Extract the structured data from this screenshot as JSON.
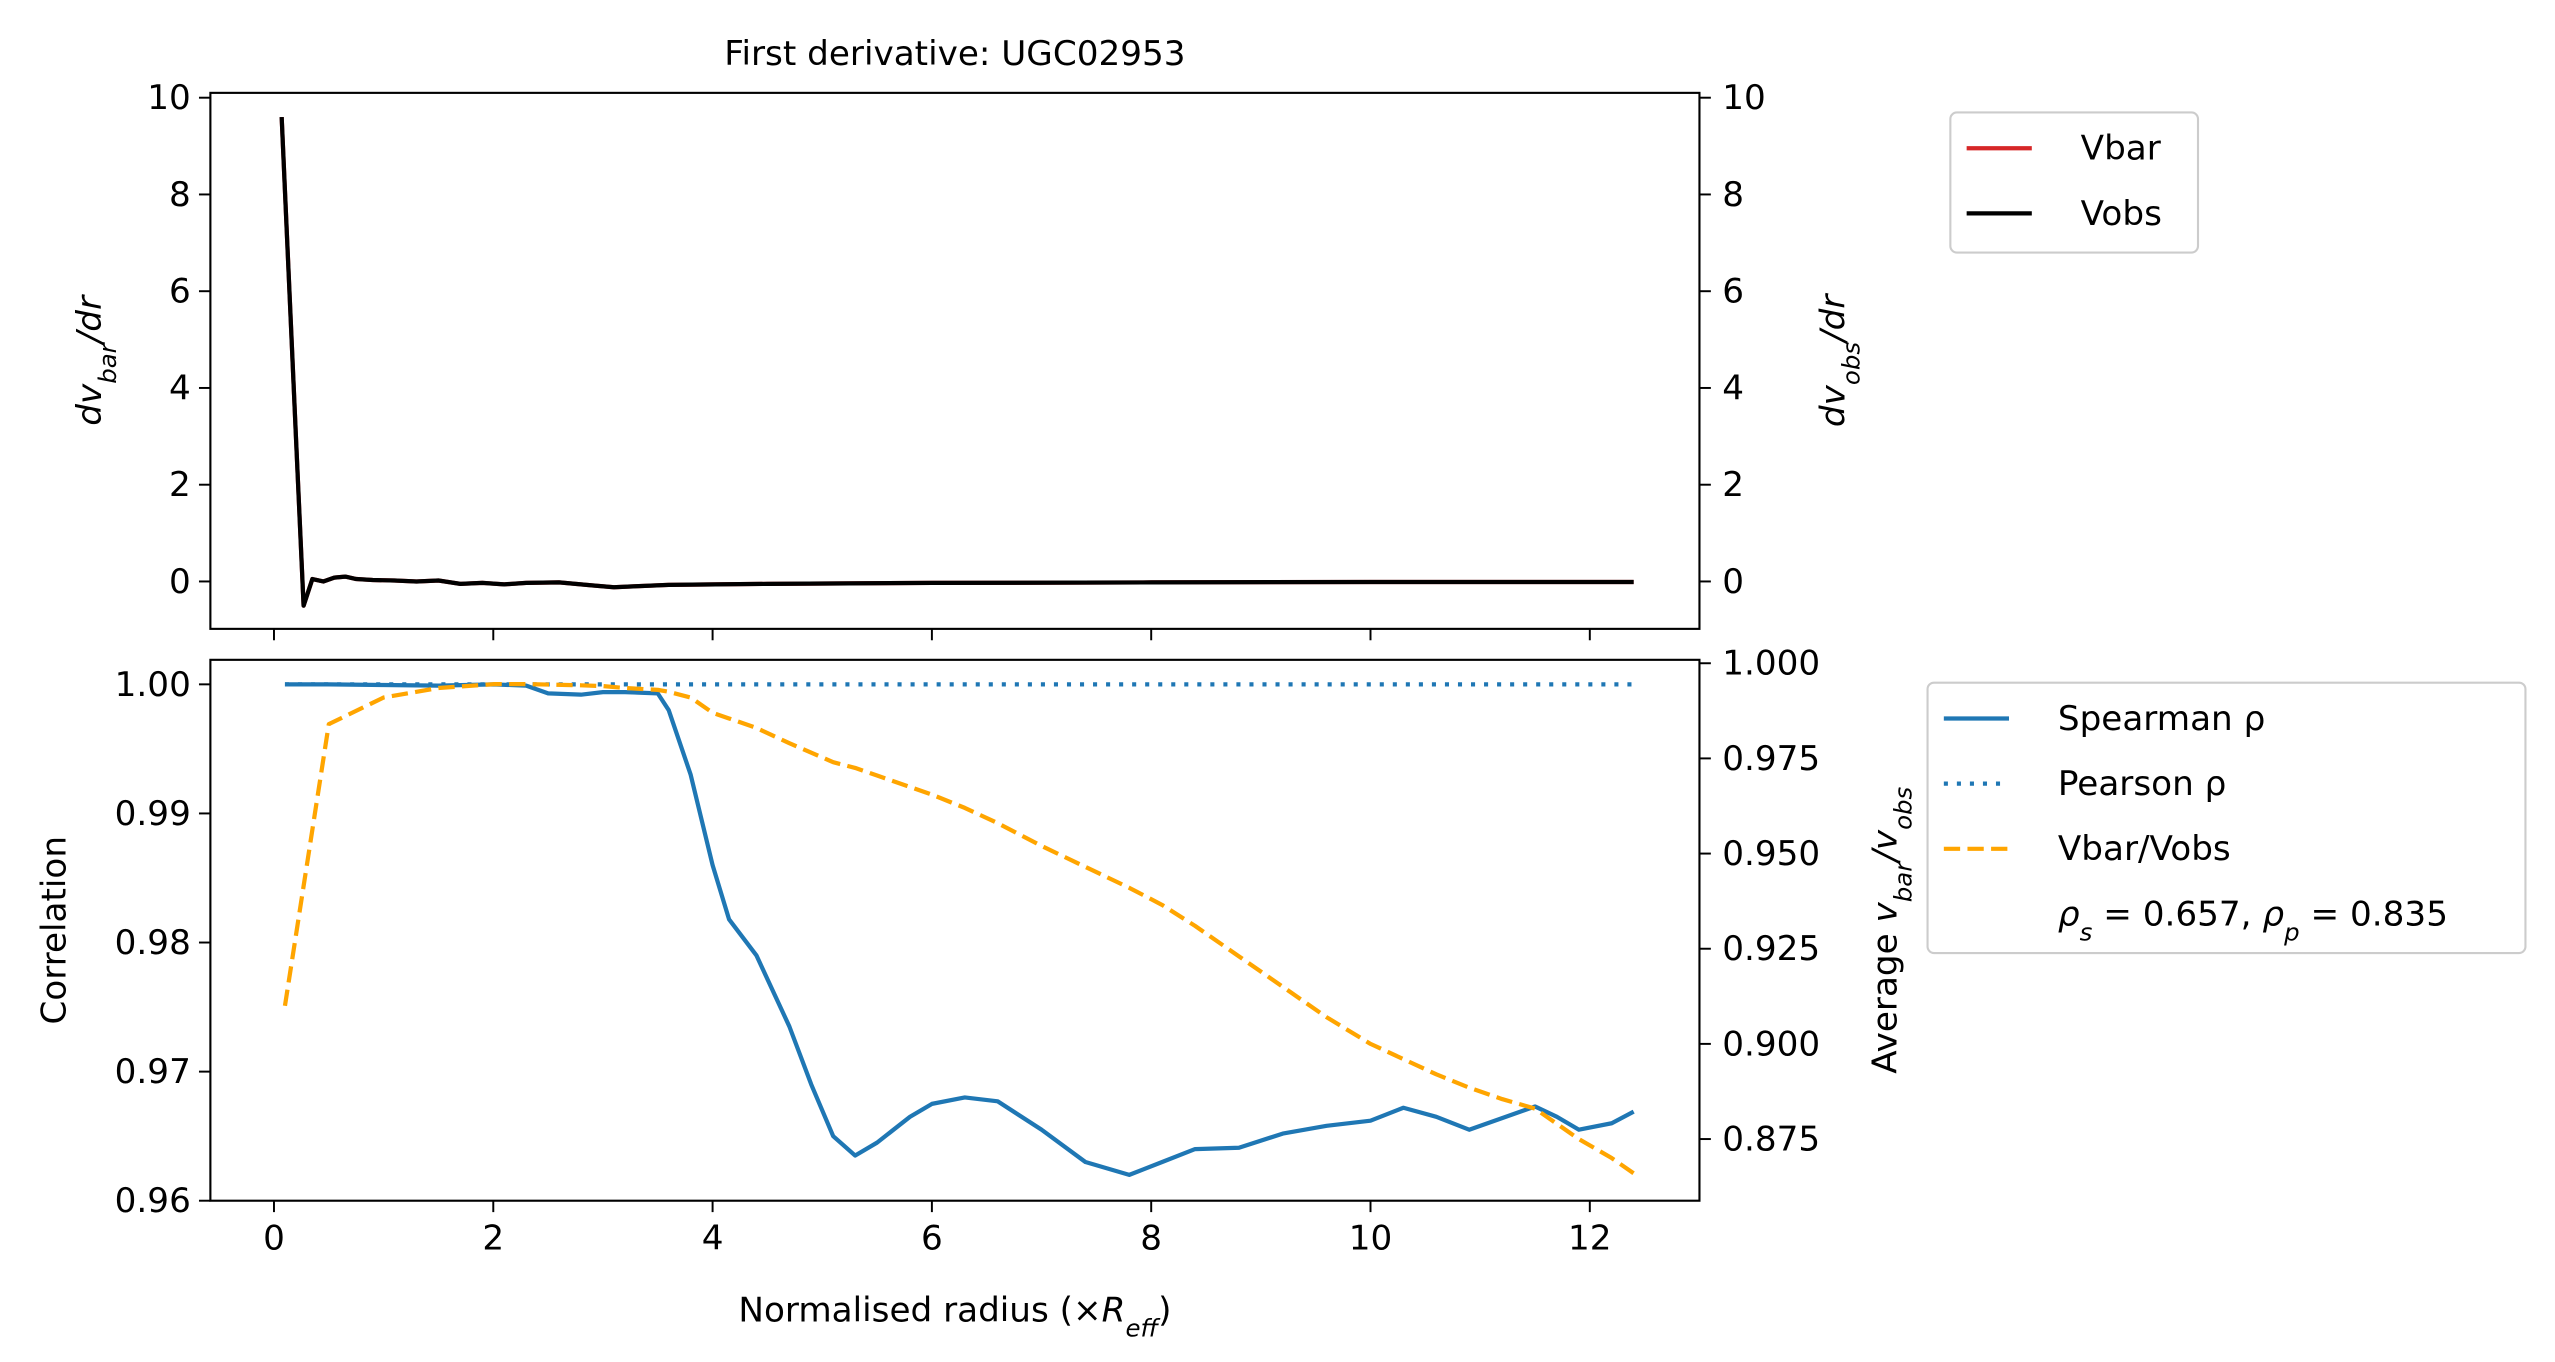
{
  "chart_data": [
    {
      "type": "line",
      "title": "First derivative: UGC02953",
      "ylabel": [
        {
          "text": "dv"
        },
        {
          "text": "bar",
          "sub": true
        },
        {
          "text": "/dr"
        }
      ],
      "y2label": [
        {
          "text": "dv"
        },
        {
          "text": "obs",
          "sub": true
        },
        {
          "text": "/dr"
        }
      ],
      "ylabel_color": "#d62728",
      "ytick_color": "#d62728",
      "y2tick_color": "#000000",
      "x": [
        0.07,
        0.2,
        0.27,
        0.35,
        0.45,
        0.55,
        0.65,
        0.75,
        0.9,
        1.1,
        1.3,
        1.5,
        1.7,
        1.9,
        2.1,
        2.3,
        2.6,
        2.9,
        3.1,
        3.3,
        3.6,
        4.5,
        6,
        8,
        10,
        12.4
      ],
      "series": [
        {
          "name": "Vbar",
          "color": "#d62728",
          "values": [
            9.6,
            3,
            -0.5,
            0.05,
            0,
            0.08,
            0.1,
            0.05,
            0.03,
            0.02,
            0,
            0.02,
            -0.05,
            -0.03,
            -0.06,
            -0.03,
            -0.02,
            -0.08,
            -0.12,
            -0.1,
            -0.07,
            -0.05,
            -0.03,
            -0.02,
            -0.01,
            -0.01
          ]
        },
        {
          "name": "Vobs",
          "color": "#000000",
          "axis": "y2",
          "values": [
            9.6,
            3,
            -0.5,
            0.05,
            0,
            0.08,
            0.1,
            0.05,
            0.03,
            0.02,
            0,
            0.02,
            -0.05,
            -0.03,
            -0.06,
            -0.03,
            -0.02,
            -0.08,
            -0.12,
            -0.1,
            -0.07,
            -0.05,
            -0.03,
            -0.02,
            -0.01,
            -0.01
          ]
        }
      ],
      "xlim": [
        -0.58,
        13.0
      ],
      "xticks": [
        0,
        2,
        4,
        6,
        8,
        10,
        12
      ],
      "show_xtick_labels": false,
      "ylim": [
        -0.98,
        10.1
      ],
      "yticks": [
        0,
        2,
        4,
        6,
        8,
        10
      ],
      "y2lim": [
        -0.98,
        10.1
      ],
      "y2ticks": [
        0,
        2,
        4,
        6,
        8,
        10
      ],
      "legend": "outside upper right"
    },
    {
      "type": "line",
      "xlabel": [
        {
          "text": "Normalised radius (×"
        },
        {
          "text": "R",
          "italic": true
        },
        {
          "text": "eff",
          "sub": true
        },
        {
          "text": ")"
        }
      ],
      "ylabel": [
        {
          "text": "Correlation"
        }
      ],
      "y2label": [
        {
          "text": "Average "
        },
        {
          "text": "v"
        },
        {
          "text": "bar",
          "sub": true
        },
        {
          "text": "/v"
        },
        {
          "text": "obs",
          "sub": true
        }
      ],
      "ylabel_color": "#000000",
      "ytick_color": "#1f77b4",
      "y2tick_color": "#ffa500",
      "x": [
        0.1,
        0.5,
        1,
        1.5,
        2,
        2.3,
        2.5,
        2.8,
        3,
        3.2,
        3.5,
        3.6,
        3.8,
        4,
        4.15,
        4.4,
        4.7,
        4.9,
        5.1,
        5.3,
        5.5,
        5.8,
        6,
        6.3,
        6.6,
        7,
        7.4,
        7.8,
        8.1,
        8.4,
        8.8,
        9.2,
        9.6,
        10,
        10.3,
        10.6,
        10.9,
        11.2,
        11.5,
        11.7,
        11.9,
        12.2,
        12.4
      ],
      "series": [
        {
          "name": "Spearman ρ",
          "color": "#1f77b4",
          "style": "solid",
          "values": [
            1.0,
            1.0,
            0.99995,
            0.9999,
            1.0,
            0.9999,
            0.9993,
            0.9992,
            0.9994,
            0.9994,
            0.9993,
            0.998,
            0.993,
            0.986,
            0.9818,
            0.979,
            0.9735,
            0.969,
            0.965,
            0.9635,
            0.9645,
            0.9665,
            0.9675,
            0.968,
            0.9677,
            0.9655,
            0.963,
            0.962,
            0.963,
            0.964,
            0.9641,
            0.9652,
            0.9658,
            0.9662,
            0.9672,
            0.9665,
            0.9655,
            0.9664,
            0.9673,
            0.9665,
            0.9655,
            0.966,
            0.9669
          ]
        },
        {
          "name": "Pearson ρ",
          "color": "#1f77b4",
          "style": "dotted",
          "values": [
            1.0,
            1.0,
            1.0,
            1.0,
            1.0,
            1.0,
            1.0,
            1.0,
            1.0,
            1.0,
            1.0,
            1.0,
            1.0,
            1.0,
            1.0,
            1.0,
            1.0,
            1.0,
            1.0,
            1.0,
            1.0,
            1.0,
            1.0,
            1.0,
            1.0,
            1.0,
            1.0,
            1.0,
            1.0,
            1.0,
            1.0,
            1.0,
            1.0,
            1.0,
            1.0,
            1.0,
            1.0,
            1.0,
            1.0,
            1.0,
            1.0,
            1.0,
            1.0
          ]
        },
        {
          "name": "Vbar/Vobs",
          "color": "#ffa500",
          "style": "dashed",
          "axis": "y2",
          "values": [
            0.91,
            0.984,
            0.991,
            0.9935,
            0.9945,
            0.9945,
            0.9944,
            0.9942,
            0.994,
            0.9935,
            0.993,
            0.9925,
            0.991,
            0.987,
            0.9855,
            0.983,
            0.979,
            0.9765,
            0.974,
            0.9725,
            0.9705,
            0.9675,
            0.9655,
            0.962,
            0.958,
            0.952,
            0.9465,
            0.941,
            0.9365,
            0.931,
            0.923,
            0.915,
            0.907,
            0.9,
            0.896,
            0.892,
            0.8885,
            0.8855,
            0.883,
            0.879,
            0.875,
            0.87,
            0.866
          ]
        }
      ],
      "legend_note": [
        {
          "text": "ρ",
          "italic": true
        },
        {
          "text": "s",
          "sub": true
        },
        {
          "text": " = 0.657, "
        },
        {
          "text": "ρ",
          "italic": true
        },
        {
          "text": "p",
          "sub": true
        },
        {
          "text": " = 0.835"
        }
      ],
      "xlim": [
        -0.58,
        13.0
      ],
      "xticks": [
        0,
        2,
        4,
        6,
        8,
        10,
        12
      ],
      "show_xtick_labels": true,
      "ylim": [
        0.96,
        1.0019
      ],
      "yticks": [
        {
          "value": 0.96,
          "label": "0.96"
        },
        {
          "value": 0.97,
          "label": "0.97"
        },
        {
          "value": 0.98,
          "label": "0.98"
        },
        {
          "value": 0.99,
          "label": "0.99"
        },
        {
          "value": 1.0,
          "label": "1.00"
        }
      ],
      "y2lim": [
        0.8588,
        1.0009
      ],
      "y2ticks": [
        {
          "value": 0.875,
          "label": "0.875"
        },
        {
          "value": 0.9,
          "label": "0.900"
        },
        {
          "value": 0.925,
          "label": "0.925"
        },
        {
          "value": 0.95,
          "label": "0.950"
        },
        {
          "value": 0.975,
          "label": "0.975"
        },
        {
          "value": 1.0,
          "label": "1.000"
        }
      ],
      "legend": "outside upper right"
    }
  ]
}
